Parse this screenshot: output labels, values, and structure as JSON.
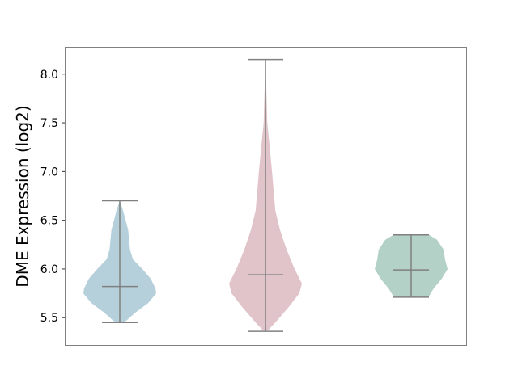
{
  "chart_data": {
    "type": "violin",
    "ylabel": "DME Expression (log2)",
    "xlabel": "",
    "ylim": [
      5.22,
      8.28
    ],
    "yticks": [
      "5.5",
      "6.0",
      "6.5",
      "7.0",
      "7.5",
      "8.0"
    ],
    "grid": false,
    "series": [
      {
        "color": "#b5cfdb",
        "min": 5.45,
        "median": 5.82,
        "max": 6.7,
        "density": [
          [
            6.7,
            0
          ],
          [
            6.6,
            0.09
          ],
          [
            6.4,
            0.23
          ],
          [
            6.2,
            0.28
          ],
          [
            6.1,
            0.36
          ],
          [
            6.0,
            0.62
          ],
          [
            5.9,
            0.85
          ],
          [
            5.8,
            0.98
          ],
          [
            5.75,
            1.0
          ],
          [
            5.65,
            0.78
          ],
          [
            5.55,
            0.42
          ],
          [
            5.47,
            0.18
          ],
          [
            5.45,
            0.1
          ]
        ]
      },
      {
        "color": "#e0c4ca",
        "min": 5.36,
        "median": 5.94,
        "max": 8.15,
        "density": [
          [
            8.15,
            0
          ],
          [
            7.5,
            0.05
          ],
          [
            7.2,
            0.13
          ],
          [
            7.0,
            0.18
          ],
          [
            6.6,
            0.27
          ],
          [
            6.4,
            0.4
          ],
          [
            6.2,
            0.58
          ],
          [
            6.0,
            0.8
          ],
          [
            5.85,
            1.0
          ],
          [
            5.75,
            0.93
          ],
          [
            5.6,
            0.62
          ],
          [
            5.45,
            0.27
          ],
          [
            5.38,
            0.09
          ],
          [
            5.36,
            0
          ]
        ]
      },
      {
        "color": "#b3d1c6",
        "min": 5.71,
        "median": 5.99,
        "max": 6.35,
        "density": [
          [
            6.35,
            0.49
          ],
          [
            6.3,
            0.71
          ],
          [
            6.2,
            0.89
          ],
          [
            6.1,
            0.93
          ],
          [
            6.0,
            1.0
          ],
          [
            5.9,
            0.84
          ],
          [
            5.8,
            0.62
          ],
          [
            5.72,
            0.49
          ],
          [
            5.71,
            0.49
          ]
        ]
      }
    ]
  }
}
